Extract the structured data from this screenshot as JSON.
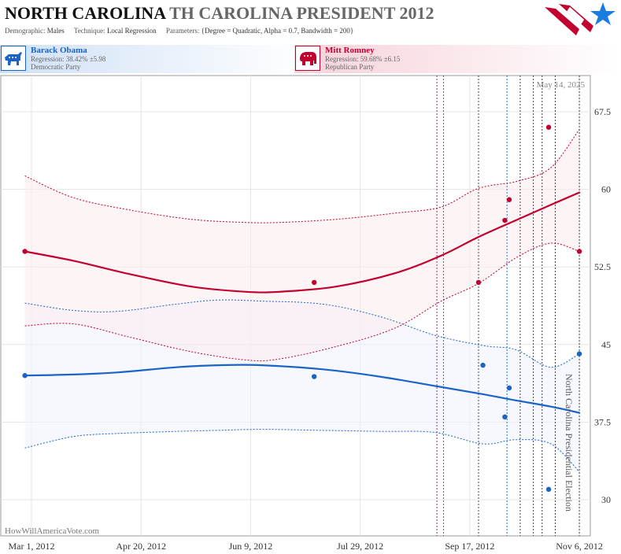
{
  "header": {
    "state": "NORTH CAROLINA",
    "race": "TH CAROLINA PRESIDENT 2012",
    "demographic_label": "Demographic:",
    "demographic_value": "Males",
    "technique_label": "Technique:",
    "technique_value": "Local Regression",
    "parameters_label": "Parameters:",
    "parameters_value": "{Degree = Quadratic, Alpha = 0.7, Bandwidth = 200}"
  },
  "candidates": {
    "dem": {
      "name": "Barack Obama",
      "regression": "Regression: 38.42% ±5.98",
      "party": "Democratic Party"
    },
    "rep": {
      "name": "Mitt Romney",
      "regression": "Regression: 59.68% ±6.15",
      "party": "Republican Party"
    }
  },
  "chart_data": {
    "type": "line",
    "date_stamp": "May 14, 2025",
    "watermark": "HowWillAmericaVote.com",
    "event_label": "North Carolina Presidential Election",
    "xlim": [
      "2012-02-16",
      "2012-11-11"
    ],
    "ylim": [
      26.5,
      71
    ],
    "x_ticks": [
      "2012-03-01",
      "2012-04-20",
      "2012-06-09",
      "2012-07-29",
      "2012-09-17",
      "2012-11-06"
    ],
    "x_tick_labels": [
      "Mar 1, 2012",
      "Apr 20, 2012",
      "Jun 9, 2012",
      "Jul 29, 2012",
      "Sep 17, 2012",
      "Nov 6, 2012"
    ],
    "y_ticks": [
      30,
      37.5,
      45,
      52.5,
      60,
      67.5
    ],
    "y_tick_labels": [
      "30",
      "37.5",
      "45",
      "52.5",
      "60",
      "67.5"
    ],
    "grid": true,
    "colors": {
      "dem": "#1a63c8",
      "rep": "#c2002f",
      "dem_band": "#eef3fb",
      "rep_band": "#fcebef"
    },
    "poll_lines": [
      {
        "date": "2012-09-02",
        "color": "#9c2a86"
      },
      {
        "date": "2012-09-05",
        "color": "#2a6fbd"
      },
      {
        "date": "2012-09-21",
        "color": "#444444"
      },
      {
        "date": "2012-10-04",
        "color": "#2a6fbd"
      },
      {
        "date": "2012-10-10",
        "color": "#444444"
      },
      {
        "date": "2012-10-16",
        "color": "#444444"
      },
      {
        "date": "2012-10-20",
        "color": "#444444"
      },
      {
        "date": "2012-10-26",
        "color": "#444444"
      },
      {
        "date": "2012-11-06",
        "color": "#444444"
      }
    ],
    "series": [
      {
        "name": "Barack Obama",
        "color": "#1a63c8",
        "points": [
          {
            "x": "2012-02-27",
            "y": 42.0
          },
          {
            "x": "2012-07-08",
            "y": 41.9
          },
          {
            "x": "2012-09-23",
            "y": 43.0
          },
          {
            "x": "2012-10-05",
            "y": 40.8
          },
          {
            "x": "2012-10-03",
            "y": 38.0
          },
          {
            "x": "2012-10-23",
            "y": 31.0
          },
          {
            "x": "2012-11-06",
            "y": 44.1
          }
        ],
        "fit": {
          "x": [
            "2012-02-27",
            "2012-03-20",
            "2012-04-09",
            "2012-05-06",
            "2012-05-25",
            "2012-06-14",
            "2012-07-12",
            "2012-08-07",
            "2012-09-01",
            "2012-09-23",
            "2012-10-08",
            "2012-10-24",
            "2012-11-06"
          ],
          "y": [
            42.0,
            42.1,
            42.3,
            42.8,
            43.0,
            43.0,
            42.6,
            41.9,
            41.0,
            40.2,
            39.6,
            39.0,
            38.4
          ],
          "upper": [
            49.0,
            48.3,
            48.2,
            48.9,
            49.3,
            49.2,
            48.9,
            47.7,
            45.9,
            44.9,
            44.5,
            42.8,
            44.1
          ],
          "lower": [
            35.0,
            36.1,
            36.4,
            36.6,
            36.7,
            36.8,
            36.7,
            36.6,
            36.5,
            35.4,
            35.8,
            35.4,
            32.7
          ]
        }
      },
      {
        "name": "Mitt Romney",
        "color": "#c2002f",
        "points": [
          {
            "x": "2012-02-27",
            "y": 54.0
          },
          {
            "x": "2012-07-08",
            "y": 51.0
          },
          {
            "x": "2012-09-21",
            "y": 51.0
          },
          {
            "x": "2012-10-03",
            "y": 57.0
          },
          {
            "x": "2012-10-05",
            "y": 59.0
          },
          {
            "x": "2012-10-23",
            "y": 66.0
          },
          {
            "x": "2012-11-06",
            "y": 54.0
          }
        ],
        "fit": {
          "x": [
            "2012-02-27",
            "2012-03-20",
            "2012-04-15",
            "2012-05-13",
            "2012-06-07",
            "2012-06-22",
            "2012-07-18",
            "2012-08-14",
            "2012-09-04",
            "2012-09-21",
            "2012-10-09",
            "2012-10-24",
            "2012-11-06"
          ],
          "y": [
            54.0,
            53.1,
            51.8,
            50.6,
            50.1,
            50.1,
            50.6,
            51.9,
            53.6,
            55.4,
            57.1,
            58.5,
            59.7
          ],
          "upper": [
            61.3,
            59.2,
            58.0,
            57.1,
            56.8,
            56.8,
            57.1,
            57.7,
            58.3,
            60.1,
            60.8,
            62.1,
            65.8
          ],
          "lower": [
            46.8,
            47.0,
            45.7,
            44.3,
            43.5,
            43.6,
            44.8,
            46.6,
            49.2,
            50.9,
            53.5,
            54.8,
            54.0
          ]
        }
      }
    ]
  }
}
